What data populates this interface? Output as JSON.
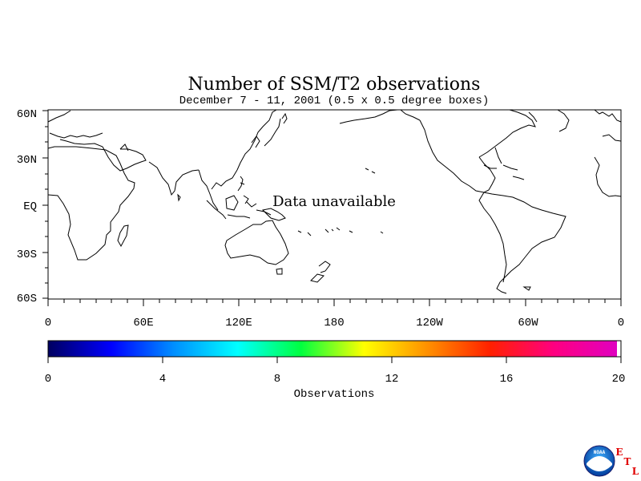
{
  "title": "Number of SSM/T2 observations",
  "subtitle": "December 7 - 11, 2001 (0.5 x 0.5 degree boxes)",
  "map": {
    "message": "Data unavailable",
    "lat_labels": [
      "60N",
      "30N",
      "EQ",
      "30S",
      "60S"
    ],
    "lon_labels": [
      "0",
      "60E",
      "120E",
      "180",
      "120W",
      "60W",
      "0"
    ]
  },
  "colorbar": {
    "label": "Observations",
    "tick_labels": [
      "0",
      "4",
      "8",
      "12",
      "16",
      "20"
    ],
    "min": 0,
    "max": 20,
    "colors": [
      "#000060",
      "#0000ff",
      "#0090ff",
      "#00ffff",
      "#00ff40",
      "#ffff00",
      "#ff9000",
      "#ff2000",
      "#ff0080",
      "#e000c0"
    ]
  },
  "logo": {
    "text": "NOAA",
    "letters": [
      "E",
      "T",
      "L"
    ]
  }
}
